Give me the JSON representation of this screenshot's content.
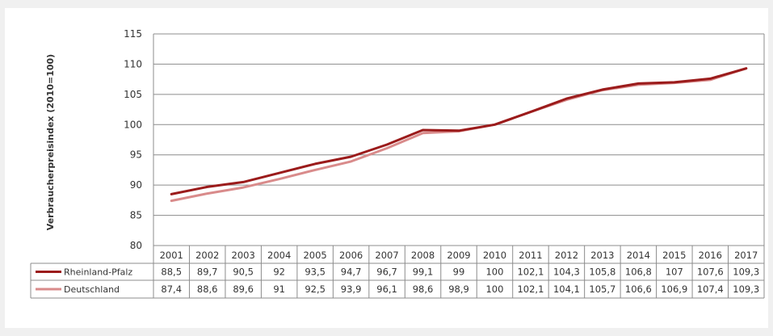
{
  "chart_data": {
    "type": "line",
    "ylabel": "Verbraucherpreisindex (2010=100)",
    "x": [
      "2001",
      "2002",
      "2003",
      "2004",
      "2005",
      "2006",
      "2007",
      "2008",
      "2009",
      "2010",
      "2011",
      "2012",
      "2013",
      "2014",
      "2015",
      "2016",
      "2017"
    ],
    "ylim": [
      80,
      115
    ],
    "yticks": [
      80,
      85,
      90,
      95,
      100,
      105,
      110,
      115
    ],
    "grid": true,
    "legend": "data-table-left",
    "series": [
      {
        "name": "Rheinland-Pfalz",
        "color": "#9b1b1b",
        "values": [
          88.5,
          89.7,
          90.5,
          92,
          93.5,
          94.7,
          96.7,
          99.1,
          99,
          100,
          102.1,
          104.3,
          105.8,
          106.8,
          107,
          107.6,
          109.3
        ],
        "labels": [
          "88,5",
          "89,7",
          "90,5",
          "92",
          "93,5",
          "94,7",
          "96,7",
          "99,1",
          "99",
          "100",
          "102,1",
          "104,3",
          "105,8",
          "106,8",
          "107",
          "107,6",
          "109,3"
        ]
      },
      {
        "name": "Deutschland",
        "color": "#d98b8b",
        "values": [
          87.4,
          88.6,
          89.6,
          91,
          92.5,
          93.9,
          96.1,
          98.6,
          98.9,
          100,
          102.1,
          104.1,
          105.7,
          106.6,
          106.9,
          107.4,
          109.3
        ],
        "labels": [
          "87,4",
          "88,6",
          "89,6",
          "91",
          "92,5",
          "93,9",
          "96,1",
          "98,6",
          "98,9",
          "100",
          "102,1",
          "104,1",
          "105,7",
          "106,6",
          "106,9",
          "107,4",
          "109,3"
        ]
      }
    ]
  }
}
